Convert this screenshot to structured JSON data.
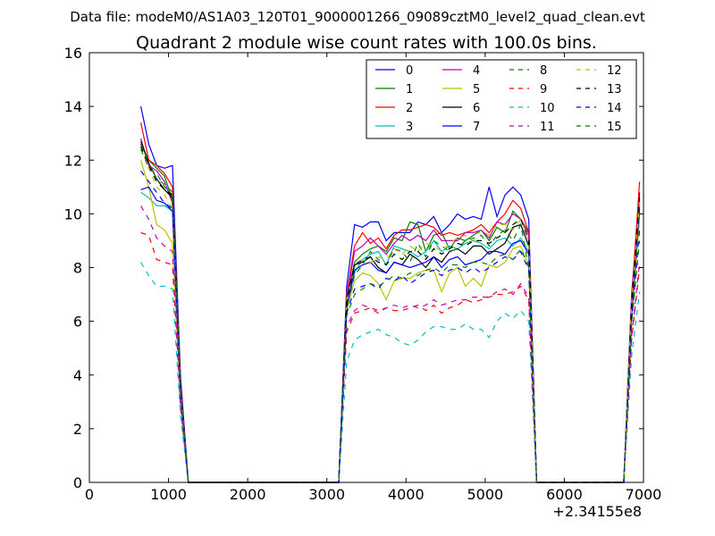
{
  "figure": {
    "suptitle": "Data file: modeM0/AS1A03_120T01_9000001266_09089cztM0_level2_quad_clean.evt",
    "x_offset_label": "+2.34155e8"
  },
  "chart_data": {
    "type": "line",
    "title": "Quadrant 2 module wise count rates with 100.0s bins.",
    "xlabel": "",
    "ylabel": "",
    "xlim": [
      0,
      7000
    ],
    "ylim": [
      0,
      16
    ],
    "x_ticks": [
      0,
      1000,
      2000,
      3000,
      4000,
      5000,
      6000,
      7000
    ],
    "x_tick_labels": [
      "0",
      "1000",
      "2000",
      "3000",
      "4000",
      "5000",
      "6000",
      "7000"
    ],
    "y_ticks": [
      0,
      2,
      4,
      6,
      8,
      10,
      12,
      14,
      16
    ],
    "y_tick_labels": [
      "0",
      "2",
      "4",
      "6",
      "8",
      "10",
      "12",
      "14",
      "16"
    ],
    "grid": false,
    "legend_location": "upper right",
    "legend_columns": 4,
    "x": [
      650,
      750,
      850,
      950,
      1050,
      1150,
      1250,
      1350,
      1450,
      1550,
      1650,
      1750,
      1850,
      1950,
      2050,
      2150,
      2250,
      2350,
      2450,
      2550,
      2650,
      2750,
      2850,
      2950,
      3050,
      3150,
      3250,
      3350,
      3450,
      3550,
      3650,
      3750,
      3850,
      3950,
      4050,
      4150,
      4250,
      4350,
      4450,
      4550,
      4650,
      4750,
      4850,
      4950,
      5050,
      5150,
      5250,
      5350,
      5450,
      5550,
      5650,
      5750,
      5850,
      5950,
      6050,
      6150,
      6250,
      6350,
      6450,
      6550,
      6650,
      6750,
      6850,
      6950
    ],
    "series": [
      {
        "name": "0",
        "color": "#0000ff",
        "dash": "solid",
        "values": [
          14.0,
          12.6,
          11.8,
          11.7,
          11.8,
          4.0,
          0,
          0,
          0,
          0,
          0,
          0,
          0,
          0,
          0,
          0,
          0,
          0,
          0,
          0,
          0,
          0,
          0,
          0,
          0,
          0,
          7.3,
          9.6,
          9.5,
          9.7,
          9.7,
          9.0,
          9.3,
          9.3,
          9.3,
          9.7,
          9.6,
          9.9,
          9.3,
          9.6,
          10.0,
          9.8,
          9.9,
          9.8,
          11.0,
          9.9,
          10.7,
          11.0,
          10.7,
          9.8,
          0,
          0,
          0,
          0,
          0,
          0,
          0,
          0,
          0,
          0,
          0,
          0,
          7.0,
          10.8
        ]
      },
      {
        "name": "1",
        "color": "#008000",
        "dash": "solid",
        "values": [
          12.6,
          12.0,
          11.7,
          11.4,
          10.5,
          3.5,
          0,
          0,
          0,
          0,
          0,
          0,
          0,
          0,
          0,
          0,
          0,
          0,
          0,
          0,
          0,
          0,
          0,
          0,
          0,
          0,
          6.8,
          8.2,
          8.5,
          8.7,
          8.8,
          8.6,
          9.1,
          9.0,
          9.7,
          9.6,
          8.6,
          9.2,
          9.3,
          8.7,
          9.1,
          9.0,
          9.2,
          9.4,
          9.0,
          9.5,
          9.3,
          10.1,
          9.8,
          9.3,
          0,
          0,
          0,
          0,
          0,
          0,
          0,
          0,
          0,
          0,
          0,
          0,
          6.6,
          10.3
        ]
      },
      {
        "name": "2",
        "color": "#ff0000",
        "dash": "solid",
        "values": [
          13.4,
          12.0,
          11.8,
          11.5,
          11.0,
          3.8,
          0,
          0,
          0,
          0,
          0,
          0,
          0,
          0,
          0,
          0,
          0,
          0,
          0,
          0,
          0,
          0,
          0,
          0,
          0,
          0,
          7.0,
          8.8,
          9.3,
          8.9,
          9.1,
          8.7,
          9.2,
          9.4,
          9.4,
          9.5,
          9.6,
          9.5,
          9.2,
          9.3,
          9.2,
          9.3,
          9.4,
          9.6,
          9.3,
          9.7,
          10.0,
          10.5,
          10.2,
          9.3,
          0,
          0,
          0,
          0,
          0,
          0,
          0,
          0,
          0,
          0,
          0,
          0,
          6.8,
          11.2
        ]
      },
      {
        "name": "3",
        "color": "#00bfbf",
        "dash": "solid",
        "values": [
          10.8,
          10.6,
          10.3,
          10.3,
          10.1,
          3.3,
          0,
          0,
          0,
          0,
          0,
          0,
          0,
          0,
          0,
          0,
          0,
          0,
          0,
          0,
          0,
          0,
          0,
          0,
          0,
          0,
          6.5,
          7.8,
          8.3,
          8.5,
          8.6,
          8.1,
          8.8,
          8.7,
          8.6,
          8.4,
          8.6,
          9.0,
          8.6,
          8.8,
          8.7,
          8.9,
          9.0,
          8.9,
          8.7,
          9.0,
          9.1,
          8.8,
          9.1,
          8.6,
          0,
          0,
          0,
          0,
          0,
          0,
          0,
          0,
          0,
          0,
          0,
          0,
          6.3,
          10.0
        ]
      },
      {
        "name": "4",
        "color": "#bf00bf",
        "dash": "solid",
        "values": [
          12.8,
          11.8,
          11.6,
          11.2,
          10.4,
          3.5,
          0,
          0,
          0,
          0,
          0,
          0,
          0,
          0,
          0,
          0,
          0,
          0,
          0,
          0,
          0,
          0,
          0,
          0,
          0,
          0,
          6.9,
          8.6,
          8.8,
          9.1,
          8.8,
          8.5,
          8.9,
          9.2,
          9.0,
          9.2,
          9.0,
          9.4,
          9.0,
          9.0,
          9.0,
          9.3,
          9.3,
          9.4,
          9.1,
          9.7,
          9.6,
          10.0,
          9.8,
          9.2,
          0,
          0,
          0,
          0,
          0,
          0,
          0,
          0,
          0,
          0,
          0,
          0,
          6.6,
          10.5
        ]
      },
      {
        "name": "5",
        "color": "#bfbf00",
        "dash": "solid",
        "values": [
          12.0,
          11.0,
          9.6,
          9.4,
          8.9,
          3.0,
          0,
          0,
          0,
          0,
          0,
          0,
          0,
          0,
          0,
          0,
          0,
          0,
          0,
          0,
          0,
          0,
          0,
          0,
          0,
          0,
          6.4,
          7.5,
          7.8,
          7.7,
          7.4,
          6.8,
          7.5,
          7.6,
          7.6,
          7.8,
          7.9,
          7.9,
          7.1,
          7.8,
          8.0,
          7.3,
          7.6,
          7.3,
          8.1,
          8.0,
          8.2,
          8.7,
          8.8,
          8.1,
          0,
          0,
          0,
          0,
          0,
          0,
          0,
          0,
          0,
          0,
          0,
          0,
          6.0,
          9.8
        ]
      },
      {
        "name": "6",
        "color": "#000000",
        "dash": "solid",
        "values": [
          12.7,
          11.9,
          11.3,
          10.9,
          10.6,
          3.5,
          0,
          0,
          0,
          0,
          0,
          0,
          0,
          0,
          0,
          0,
          0,
          0,
          0,
          0,
          0,
          0,
          0,
          0,
          0,
          0,
          6.8,
          8.1,
          8.2,
          8.4,
          8.0,
          7.8,
          8.2,
          8.1,
          8.5,
          8.3,
          8.0,
          8.4,
          8.2,
          8.6,
          8.7,
          8.5,
          8.8,
          8.8,
          8.5,
          8.7,
          8.9,
          9.5,
          9.6,
          8.8,
          0,
          0,
          0,
          0,
          0,
          0,
          0,
          0,
          0,
          0,
          0,
          0,
          6.4,
          10.4
        ]
      },
      {
        "name": "7",
        "color": "#0000ff",
        "dash": "solid",
        "values": [
          10.9,
          11.0,
          10.5,
          10.4,
          10.1,
          3.4,
          0,
          0,
          0,
          0,
          0,
          0,
          0,
          0,
          0,
          0,
          0,
          0,
          0,
          0,
          0,
          0,
          0,
          0,
          0,
          0,
          6.5,
          7.9,
          8.1,
          8.2,
          7.9,
          7.8,
          8.2,
          8.1,
          8.0,
          8.1,
          8.2,
          8.4,
          8.0,
          8.3,
          8.4,
          8.1,
          8.2,
          8.3,
          8.6,
          8.6,
          8.5,
          8.9,
          9.0,
          8.5,
          0,
          0,
          0,
          0,
          0,
          0,
          0,
          0,
          0,
          0,
          0,
          0,
          6.3,
          10.2
        ]
      },
      {
        "name": "8",
        "color": "#008000",
        "dash": "dashed",
        "values": [
          12.4,
          11.7,
          11.5,
          11.0,
          10.7,
          3.6,
          0,
          0,
          0,
          0,
          0,
          0,
          0,
          0,
          0,
          0,
          0,
          0,
          0,
          0,
          0,
          0,
          0,
          0,
          0,
          0,
          6.5,
          7.7,
          8.1,
          8.6,
          8.3,
          8.1,
          8.7,
          8.6,
          8.2,
          8.9,
          8.4,
          9.0,
          8.8,
          8.6,
          8.7,
          9.0,
          9.1,
          9.2,
          8.8,
          9.2,
          9.4,
          9.0,
          9.6,
          8.0,
          0,
          0,
          0,
          0,
          0,
          0,
          0,
          0,
          0,
          0,
          0,
          0,
          6.4,
          10.3
        ]
      },
      {
        "name": "9",
        "color": "#ff0000",
        "dash": "dashed",
        "values": [
          9.3,
          9.2,
          8.3,
          8.2,
          8.1,
          2.8,
          0,
          0,
          0,
          0,
          0,
          0,
          0,
          0,
          0,
          0,
          0,
          0,
          0,
          0,
          0,
          0,
          0,
          0,
          0,
          0,
          5.6,
          6.3,
          6.4,
          6.5,
          6.3,
          6.5,
          6.4,
          6.4,
          6.5,
          6.6,
          6.4,
          6.6,
          6.3,
          6.5,
          6.6,
          6.8,
          6.7,
          6.8,
          6.9,
          7.0,
          7.0,
          7.1,
          7.3,
          6.8,
          0,
          0,
          0,
          0,
          0,
          0,
          0,
          0,
          0,
          0,
          0,
          0,
          5.3,
          8.0
        ]
      },
      {
        "name": "10",
        "color": "#00bfbf",
        "dash": "dashed",
        "values": [
          8.2,
          7.7,
          7.3,
          7.3,
          7.2,
          2.5,
          0,
          0,
          0,
          0,
          0,
          0,
          0,
          0,
          0,
          0,
          0,
          0,
          0,
          0,
          0,
          0,
          0,
          0,
          0,
          0,
          4.5,
          5.3,
          5.5,
          5.6,
          5.7,
          5.5,
          5.4,
          5.2,
          5.1,
          5.3,
          5.6,
          5.8,
          5.8,
          5.7,
          5.7,
          5.9,
          5.7,
          5.7,
          5.4,
          6.0,
          6.3,
          6.1,
          6.4,
          6.0,
          0,
          0,
          0,
          0,
          0,
          0,
          0,
          0,
          0,
          0,
          0,
          0,
          4.7,
          7.1
        ]
      },
      {
        "name": "11",
        "color": "#bf00bf",
        "dash": "dashed",
        "values": [
          10.3,
          9.8,
          9.1,
          8.8,
          8.6,
          2.9,
          0,
          0,
          0,
          0,
          0,
          0,
          0,
          0,
          0,
          0,
          0,
          0,
          0,
          0,
          0,
          0,
          0,
          0,
          0,
          0,
          5.8,
          6.4,
          6.6,
          6.5,
          6.4,
          6.5,
          6.6,
          6.5,
          6.6,
          6.5,
          6.6,
          6.8,
          6.6,
          6.7,
          6.8,
          6.8,
          6.9,
          6.9,
          6.9,
          7.1,
          7.2,
          7.0,
          7.4,
          6.9,
          0,
          0,
          0,
          0,
          0,
          0,
          0,
          0,
          0,
          0,
          0,
          0,
          5.4,
          8.2
        ]
      },
      {
        "name": "12",
        "color": "#bfbf00",
        "dash": "dashed",
        "values": [
          12.5,
          11.7,
          11.0,
          10.7,
          10.2,
          3.4,
          0,
          0,
          0,
          0,
          0,
          0,
          0,
          0,
          0,
          0,
          0,
          0,
          0,
          0,
          0,
          0,
          0,
          0,
          0,
          0,
          6.8,
          8.0,
          8.3,
          8.2,
          8.4,
          8.3,
          8.7,
          8.5,
          8.8,
          8.6,
          8.9,
          8.8,
          8.6,
          8.9,
          9.1,
          9.2,
          9.0,
          9.4,
          9.2,
          9.6,
          9.6,
          9.4,
          9.8,
          9.0,
          0,
          0,
          0,
          0,
          0,
          0,
          0,
          0,
          0,
          0,
          0,
          0,
          6.6,
          10.5
        ]
      },
      {
        "name": "13",
        "color": "#000000",
        "dash": "dashed",
        "values": [
          12.5,
          11.8,
          11.2,
          10.9,
          10.7,
          3.6,
          0,
          0,
          0,
          0,
          0,
          0,
          0,
          0,
          0,
          0,
          0,
          0,
          0,
          0,
          0,
          0,
          0,
          0,
          0,
          0,
          6.7,
          8.1,
          8.3,
          8.4,
          8.2,
          8.1,
          8.5,
          8.3,
          8.6,
          8.6,
          8.3,
          8.7,
          8.5,
          8.7,
          8.9,
          8.8,
          9.0,
          9.0,
          8.9,
          9.1,
          9.3,
          9.6,
          9.8,
          9.0,
          0,
          0,
          0,
          0,
          0,
          0,
          0,
          0,
          0,
          0,
          0,
          0,
          6.6,
          10.6
        ]
      },
      {
        "name": "14",
        "color": "#0000ff",
        "dash": "dashed",
        "values": [
          11.6,
          11.2,
          10.8,
          10.4,
          10.2,
          3.4,
          0,
          0,
          0,
          0,
          0,
          0,
          0,
          0,
          0,
          0,
          0,
          0,
          0,
          0,
          0,
          0,
          0,
          0,
          0,
          0,
          6.3,
          7.2,
          7.3,
          7.4,
          7.2,
          7.6,
          7.5,
          7.7,
          7.4,
          7.6,
          7.8,
          7.9,
          7.7,
          7.9,
          8.0,
          7.8,
          8.0,
          7.8,
          8.0,
          8.2,
          8.4,
          8.3,
          8.6,
          7.9,
          0,
          0,
          0,
          0,
          0,
          0,
          0,
          0,
          0,
          0,
          0,
          0,
          6.0,
          9.4
        ]
      },
      {
        "name": "15",
        "color": "#008000",
        "dash": "dashed",
        "values": [
          12.6,
          11.9,
          11.3,
          11.1,
          10.8,
          3.6,
          0,
          0,
          0,
          0,
          0,
          0,
          0,
          0,
          0,
          0,
          0,
          0,
          0,
          0,
          0,
          0,
          0,
          0,
          0,
          0,
          6.2,
          7.0,
          7.2,
          7.4,
          7.3,
          7.5,
          7.7,
          7.6,
          7.8,
          7.7,
          7.9,
          8.0,
          7.8,
          8.1,
          8.1,
          8.0,
          8.2,
          8.2,
          8.1,
          8.4,
          8.5,
          8.3,
          8.7,
          8.0,
          0,
          0,
          0,
          0,
          0,
          0,
          0,
          0,
          0,
          0,
          0,
          0,
          5.9,
          9.0
        ]
      }
    ]
  }
}
